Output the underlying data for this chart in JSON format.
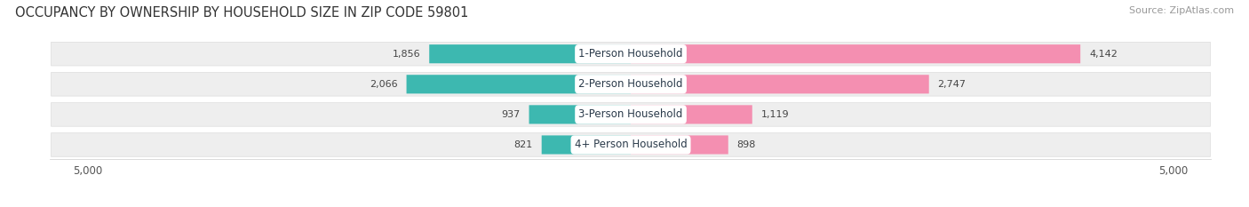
{
  "title": "OCCUPANCY BY OWNERSHIP BY HOUSEHOLD SIZE IN ZIP CODE 59801",
  "source": "Source: ZipAtlas.com",
  "categories": [
    "1-Person Household",
    "2-Person Household",
    "3-Person Household",
    "4+ Person Household"
  ],
  "owner_values": [
    1856,
    2066,
    937,
    821
  ],
  "renter_values": [
    4142,
    2747,
    1119,
    898
  ],
  "owner_color": "#3db8b0",
  "renter_color": "#f48fb1",
  "axis_limit": 5000,
  "title_fontsize": 10.5,
  "source_fontsize": 8,
  "label_fontsize": 8.5,
  "value_fontsize": 8,
  "tick_fontsize": 8.5,
  "background_color": "#ffffff",
  "row_bg_color": "#eeeeee",
  "row_border_color": "#dddddd"
}
